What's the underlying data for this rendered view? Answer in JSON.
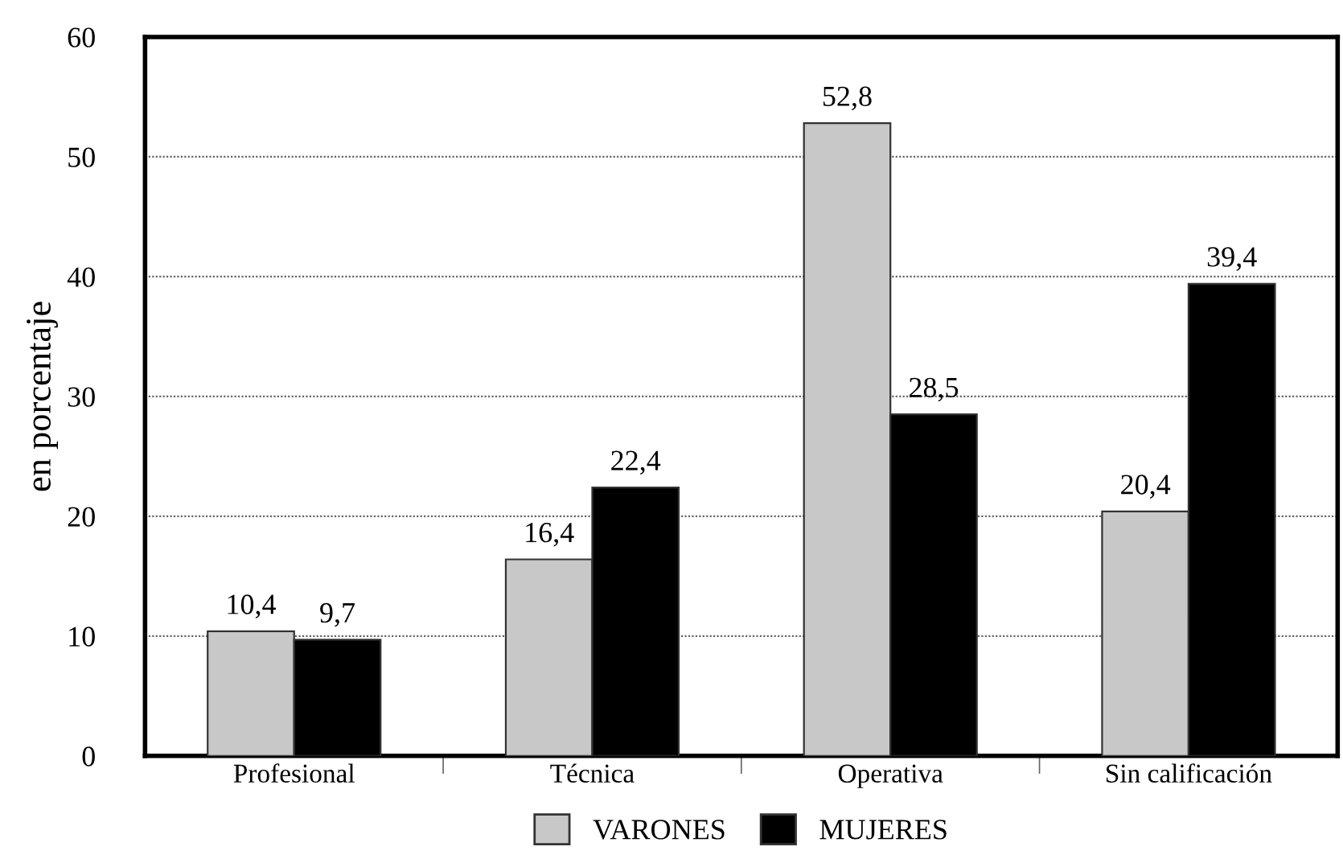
{
  "chart_data": {
    "type": "bar",
    "ylabel": "en porcentaje",
    "categories": [
      "Profesional",
      "Técnica",
      "Operativa",
      "Sin calificación"
    ],
    "series": [
      {
        "name": "VARONES",
        "color": "#c8c8c8",
        "values": [
          10.4,
          16.4,
          52.8,
          20.4
        ],
        "value_labels": [
          "10,4",
          "16,4",
          "52,8",
          "20,4"
        ]
      },
      {
        "name": "MUJERES",
        "color": "#000000",
        "values": [
          9.7,
          22.4,
          28.5,
          39.4
        ],
        "value_labels": [
          "9,7",
          "22,4",
          "28,5",
          "39,4"
        ]
      }
    ],
    "ylim": [
      0,
      60
    ],
    "yticks": [
      0,
      10,
      20,
      30,
      40,
      50,
      60
    ],
    "grid": "y",
    "legend": "bottom"
  }
}
